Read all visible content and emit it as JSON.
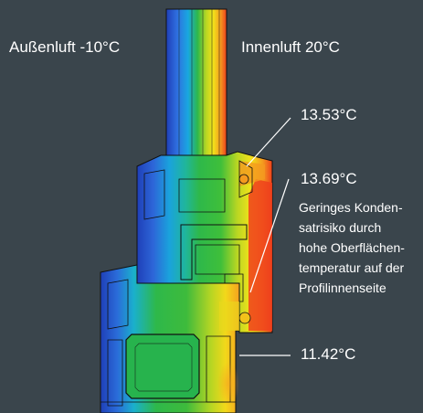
{
  "labels": {
    "outside": "Außenluft -10°C",
    "inside": "Innenluft 20°C",
    "temp_top": "13.53°C",
    "temp_mid": "13.69°C",
    "temp_low": "11.42°C"
  },
  "note_lines": [
    "Geringes Konden-",
    "satrisiko durch",
    "hohe Oberflächen-",
    "temperatur auf der",
    "Profilinnenseite"
  ],
  "colors": {
    "background": "#3a454c",
    "cold": "#1f3fb8",
    "mid_cold": "#19a7e0",
    "neutral": "#2eb84a",
    "mid_warm": "#f2e21a",
    "warm": "#ee3f1c",
    "text": "#ffffff",
    "leader_line": "#ffffff"
  }
}
